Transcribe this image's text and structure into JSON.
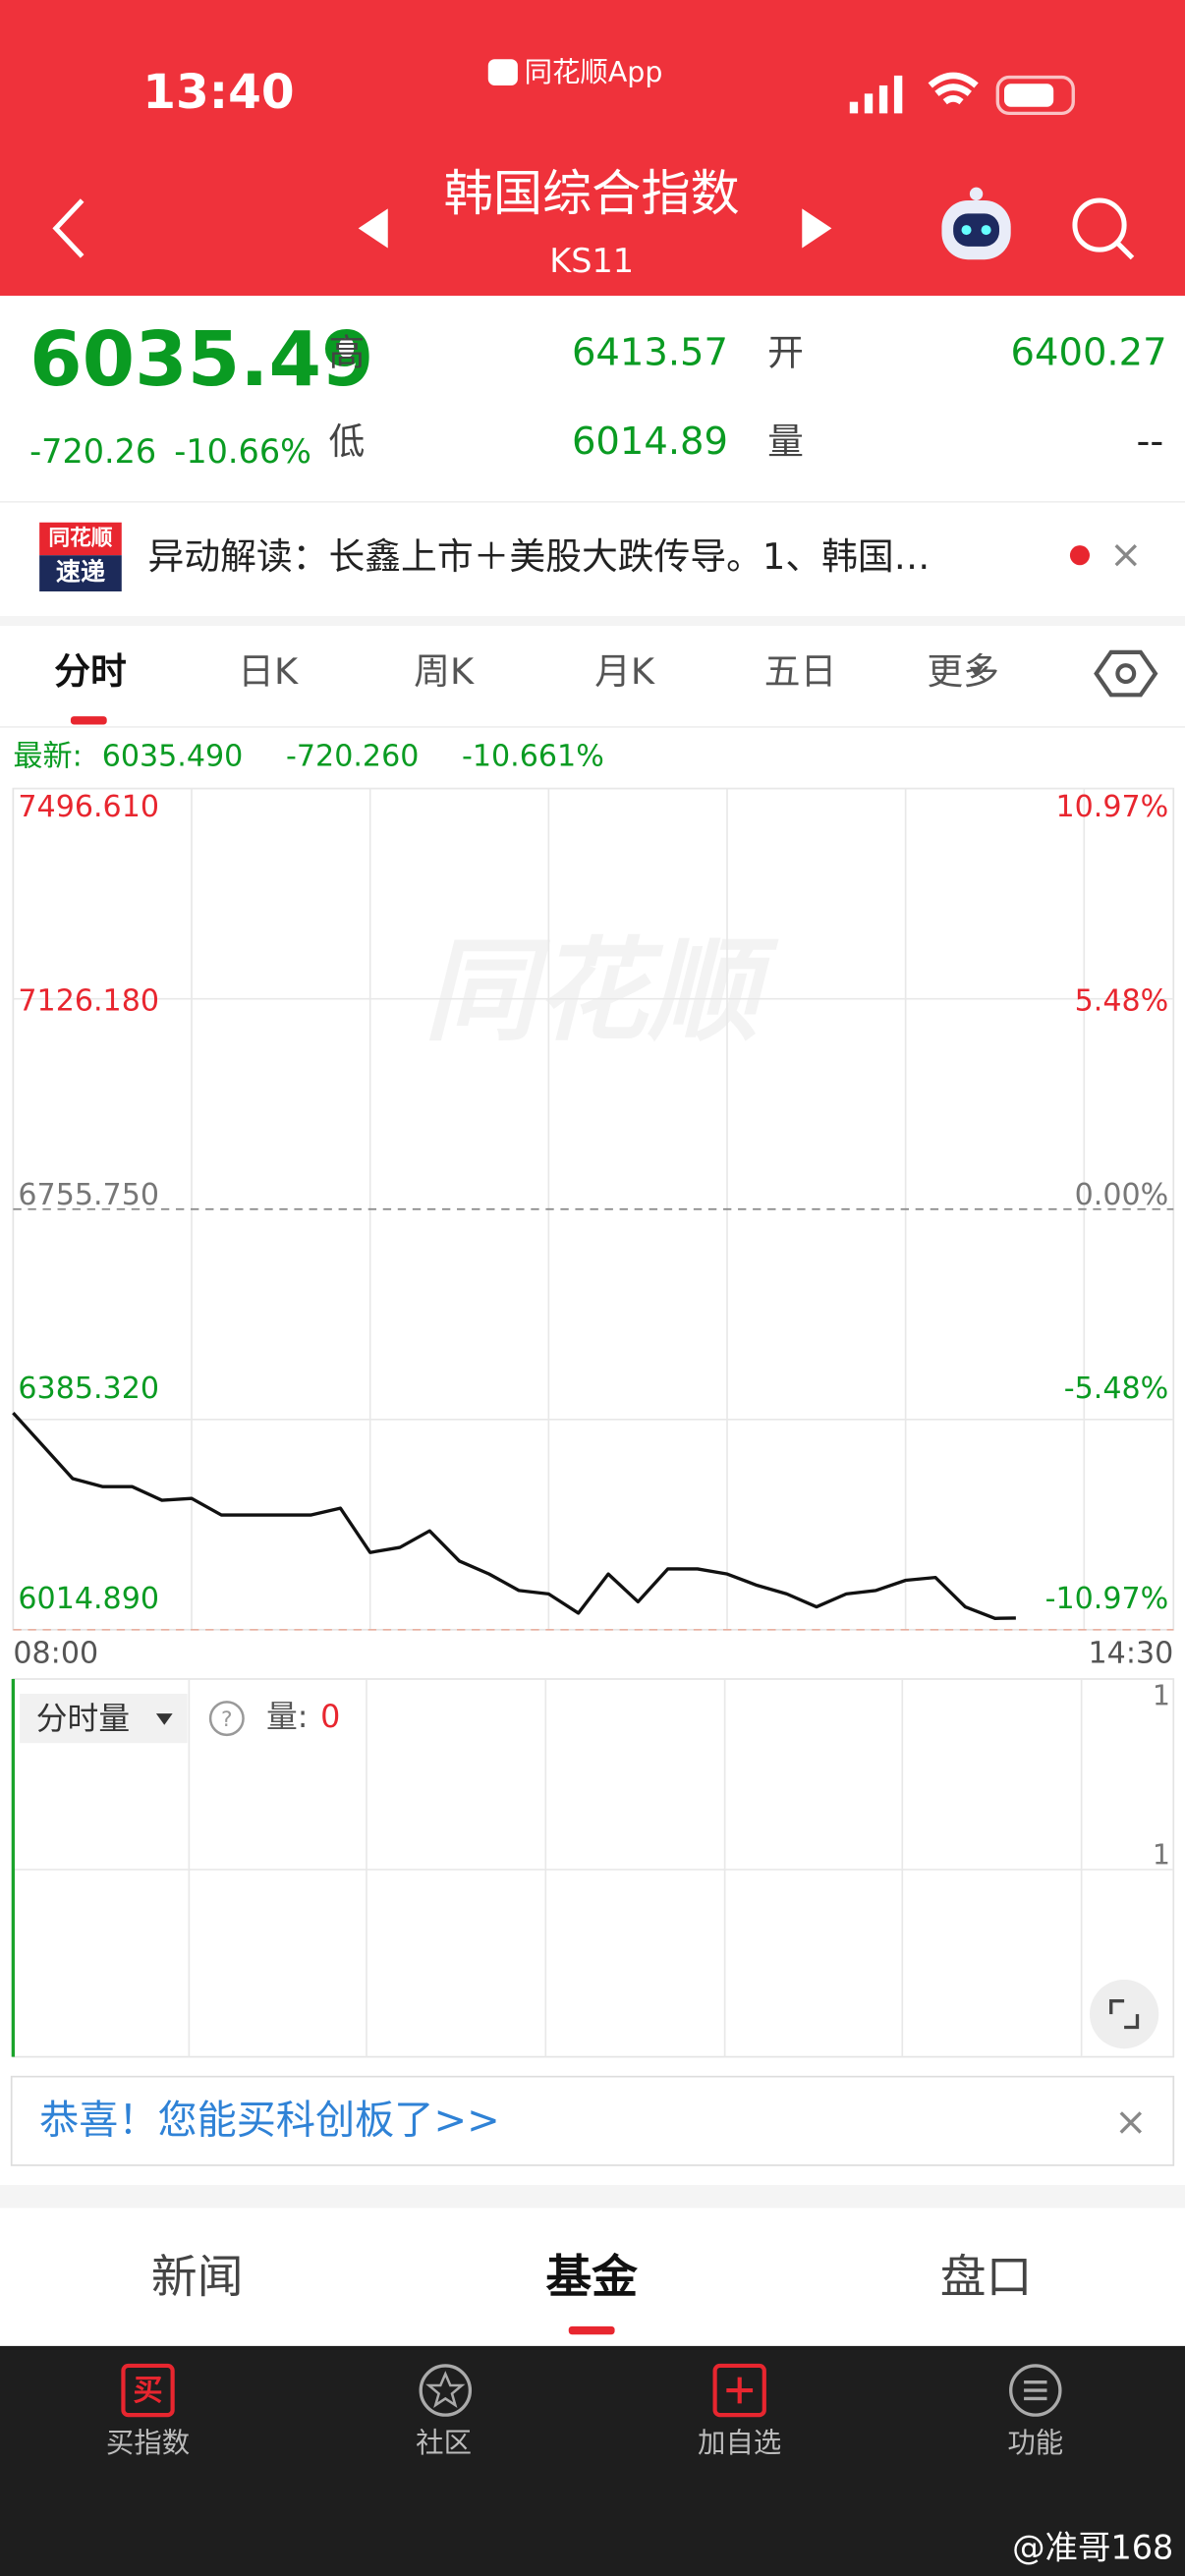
{
  "status": {
    "time": "13:40",
    "app": "同花顺App"
  },
  "header": {
    "title": "韩国综合指数",
    "code": "KS11"
  },
  "quote": {
    "price": "6035.49",
    "change": "-720.26",
    "change_pct": "-10.66%",
    "high_label": "高",
    "high": "6413.57",
    "open_label": "开",
    "open": "6400.27",
    "low_label": "低",
    "low": "6014.89",
    "volume_label": "量",
    "volume": "--"
  },
  "news": {
    "badge_top": "同花顺",
    "badge_bottom": "速递",
    "text": "异动解读：长鑫上市＋美股大跌传导。1、韩国…"
  },
  "tabs": [
    "分时",
    "日K",
    "周K",
    "月K",
    "五日",
    "更多"
  ],
  "latest": {
    "label": "最新:",
    "price": "6035.490",
    "change": "-720.260",
    "pct": "-10.661%"
  },
  "chart_data": {
    "type": "line",
    "watermark": "同花顺",
    "xlim": [
      "08:00",
      "14:30"
    ],
    "x": [
      "08:00",
      "08:10",
      "08:20",
      "08:30",
      "08:40",
      "08:50",
      "09:00",
      "09:10",
      "09:20",
      "09:30",
      "09:40",
      "09:50",
      "10:00",
      "10:10",
      "10:20",
      "10:30",
      "10:40",
      "10:50",
      "11:00",
      "11:10",
      "11:20",
      "11:30",
      "11:40",
      "11:50",
      "12:00",
      "12:10",
      "12:20",
      "12:30",
      "12:40",
      "12:50",
      "13:00",
      "13:10",
      "13:20",
      "13:30",
      "13:37"
    ],
    "series": [
      {
        "name": "最新",
        "color": "#111111",
        "values": [
          6397,
          6339,
          6281,
          6267,
          6267,
          6243,
          6246,
          6217,
          6217,
          6217,
          6217,
          6229,
          6151,
          6160,
          6189,
          6136,
          6113,
          6084,
          6078,
          6044,
          6113,
          6064,
          6122,
          6122,
          6113,
          6093,
          6078,
          6055,
          6078,
          6084,
          6102,
          6107,
          6055,
          6035,
          6035.49
        ]
      }
    ],
    "ylim": [
      6014.89,
      7496.61
    ],
    "yticks": [
      {
        "value": 7496.61,
        "label": "7496.610"
      },
      {
        "value": 7126.18,
        "label": "7126.180"
      },
      {
        "value": 6755.75,
        "label": "6755.750"
      },
      {
        "value": 6385.32,
        "label": "6385.320"
      },
      {
        "value": 6014.89,
        "label": "6014.890"
      }
    ],
    "y2lim": [
      -10.97,
      10.97
    ],
    "y2ticks": [
      {
        "value": 10.97,
        "label": "10.97%"
      },
      {
        "value": 5.48,
        "label": "5.48%"
      },
      {
        "value": 0,
        "label": "0.00%"
      },
      {
        "value": -5.48,
        "label": "-5.48%"
      },
      {
        "value": -10.97,
        "label": "-10.97%"
      }
    ],
    "grid": true
  },
  "volume": {
    "selector": "分时量",
    "label": "量:",
    "value": "0",
    "ticks": [
      "1",
      "1"
    ]
  },
  "banner": {
    "text": "恭喜！您能买科创板了>>"
  },
  "sections": [
    "新闻",
    "基金",
    "盘口"
  ],
  "nav": [
    "买指数",
    "社区",
    "加自选",
    "功能"
  ],
  "watermark": "@准哥168"
}
